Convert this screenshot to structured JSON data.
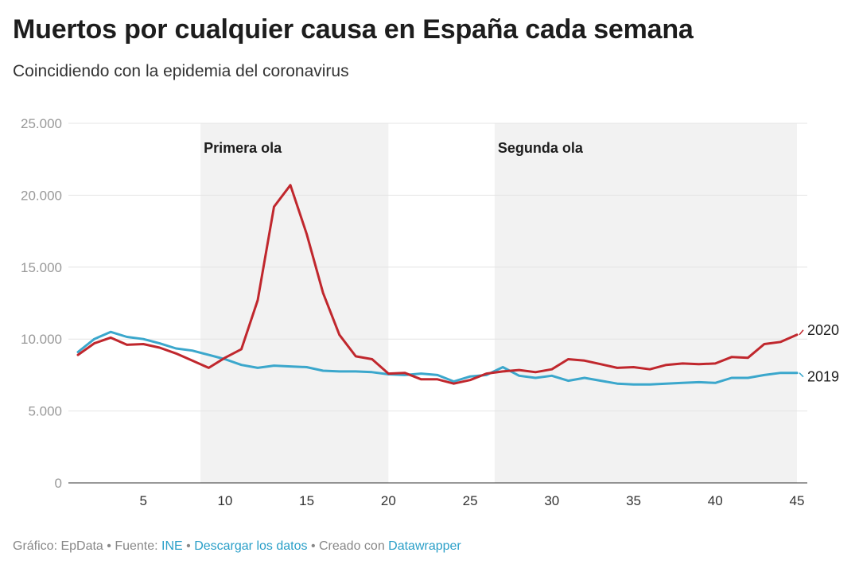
{
  "title": "Muertos por cualquier causa en España cada semana",
  "subtitle": "Coincidiendo con la epidemia del coronavirus",
  "footer": {
    "prefix": "Gráfico: EpData • Fuente: ",
    "source_link": "INE",
    "sep1": " • ",
    "download_link": "Descargar los datos",
    "sep2": " • Creado con ",
    "tool_link": "Datawrapper"
  },
  "colors": {
    "series_2020": "#c0272d",
    "series_2019": "#3ba7cc",
    "band": "#f2f2f2",
    "grid": "#e4e4e4",
    "axis": "#333333"
  },
  "chart_data": {
    "type": "line",
    "title": "Muertos por cualquier causa en España cada semana",
    "xlabel": "",
    "ylabel": "",
    "xlim": [
      1,
      45
    ],
    "ylim": [
      0,
      25000
    ],
    "yticks": [
      0,
      5000,
      10000,
      15000,
      20000,
      25000
    ],
    "ytick_labels": [
      "0",
      "5.000",
      "10.000",
      "15.000",
      "20.000",
      "25.000"
    ],
    "xticks": [
      5,
      10,
      15,
      20,
      25,
      30,
      35,
      40,
      45
    ],
    "xtick_labels": [
      "5",
      "10",
      "15",
      "20",
      "25",
      "30",
      "35",
      "40",
      "45"
    ],
    "bands": [
      {
        "label": "Primera ola",
        "from": 9,
        "to": 20
      },
      {
        "label": "Segunda ola",
        "from": 27,
        "to": 45
      }
    ],
    "x": [
      1,
      2,
      3,
      4,
      5,
      6,
      7,
      8,
      9,
      10,
      11,
      12,
      13,
      14,
      15,
      16,
      17,
      18,
      19,
      20,
      21,
      22,
      23,
      24,
      25,
      26,
      27,
      28,
      29,
      30,
      31,
      32,
      33,
      34,
      35,
      36,
      37,
      38,
      39,
      40,
      41,
      42,
      43,
      44,
      45
    ],
    "series": [
      {
        "name": "2020",
        "values": [
          8900,
          9700,
          10100,
          9600,
          9650,
          9400,
          9000,
          8500,
          8000,
          8700,
          9300,
          12700,
          19200,
          20700,
          17300,
          13200,
          10300,
          8800,
          8600,
          7600,
          7650,
          7200,
          7200,
          6900,
          7150,
          7600,
          7750,
          7850,
          7700,
          7900,
          8600,
          8500,
          8250,
          8000,
          8050,
          7900,
          8200,
          8300,
          8250,
          8300,
          8750,
          8700,
          9650,
          9800,
          10300
        ]
      },
      {
        "name": "2019",
        "values": [
          9100,
          10000,
          10500,
          10150,
          10000,
          9700,
          9350,
          9200,
          8900,
          8600,
          8200,
          8000,
          8150,
          8100,
          8050,
          7800,
          7750,
          7750,
          7700,
          7550,
          7500,
          7600,
          7500,
          7050,
          7400,
          7500,
          8050,
          7450,
          7300,
          7450,
          7100,
          7300,
          7100,
          6900,
          6850,
          6850,
          6900,
          6950,
          7000,
          6950,
          7300,
          7300,
          7500,
          7650,
          7650
        ]
      }
    ],
    "series_labels": [
      "2020",
      "2019"
    ]
  }
}
